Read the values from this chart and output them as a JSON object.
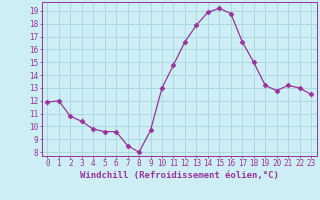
{
  "x": [
    0,
    1,
    2,
    3,
    4,
    5,
    6,
    7,
    8,
    9,
    10,
    11,
    12,
    13,
    14,
    15,
    16,
    17,
    18,
    19,
    20,
    21,
    22,
    23
  ],
  "y": [
    11.9,
    12.0,
    10.8,
    10.4,
    9.8,
    9.6,
    9.6,
    8.5,
    8.0,
    9.7,
    13.0,
    14.8,
    16.6,
    17.9,
    18.9,
    19.2,
    18.8,
    16.6,
    15.0,
    13.2,
    12.8,
    13.2,
    13.0,
    12.5
  ],
  "line_color": "#993399",
  "marker": "D",
  "markersize": 2.5,
  "linewidth": 0.9,
  "xlabel": "Windchill (Refroidissement éolien,°C)",
  "xlabel_fontsize": 6.5,
  "ylabel_ticks": [
    8,
    9,
    10,
    11,
    12,
    13,
    14,
    15,
    16,
    17,
    18,
    19
  ],
  "ylim": [
    7.7,
    19.7
  ],
  "xlim": [
    -0.5,
    23.5
  ],
  "background_color": "#ceeef5",
  "grid_color": "#aad4dc",
  "tick_color": "#993399",
  "tick_fontsize": 5.5
}
